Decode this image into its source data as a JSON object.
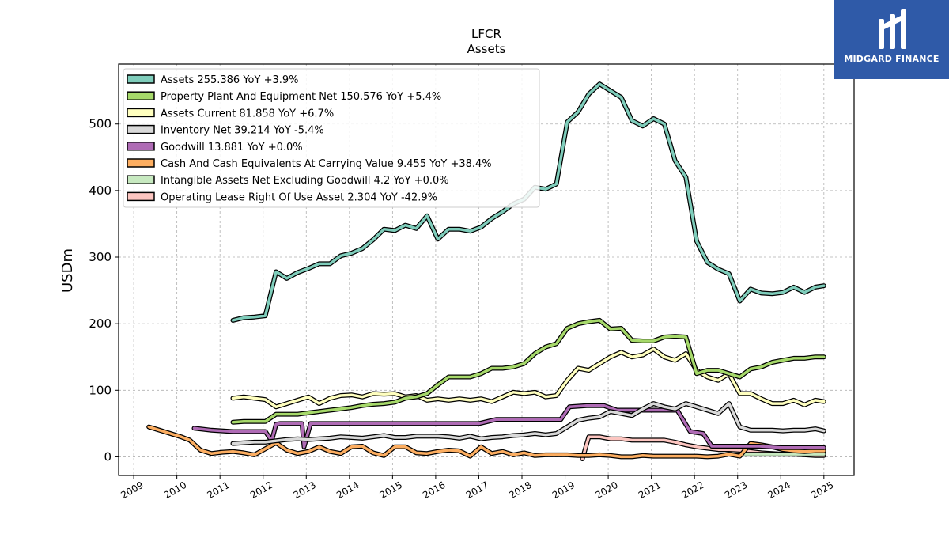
{
  "chart_data": {
    "type": "line",
    "title": "LFCR",
    "subtitle": "Assets",
    "ylabel": "USDm",
    "xlabel": "",
    "xlim": [
      2008.65,
      2025.7
    ],
    "ylim": [
      -28,
      590
    ],
    "x_ticks": [
      "2009",
      "2010",
      "2011",
      "2012",
      "2013",
      "2014",
      "2015",
      "2016",
      "2017",
      "2018",
      "2019",
      "2020",
      "2021",
      "2022",
      "2023",
      "2024",
      "2025"
    ],
    "y_ticks": [
      "0",
      "100",
      "200",
      "300",
      "400",
      "500"
    ],
    "grid": true,
    "legend_position": "top-left",
    "series": [
      {
        "name": "Assets",
        "legend": "Assets  255.386 YoY +3.9%",
        "color": "#7fcdbb",
        "x": [
          2011.3,
          2011.55,
          2011.8,
          2012.05,
          2012.3,
          2012.55,
          2012.8,
          2013.05,
          2013.3,
          2013.55,
          2013.8,
          2014.05,
          2014.3,
          2014.55,
          2014.8,
          2015.05,
          2015.3,
          2015.55,
          2015.8,
          2016.05,
          2016.3,
          2016.55,
          2016.8,
          2017.05,
          2017.3,
          2017.55,
          2017.8,
          2018.05,
          2018.3,
          2018.55,
          2018.8,
          2019.05,
          2019.3,
          2019.55,
          2019.8,
          2020.05,
          2020.3,
          2020.55,
          2020.8,
          2021.05,
          2021.3,
          2021.55,
          2021.8,
          2022.05,
          2022.3,
          2022.55,
          2022.8,
          2023.05,
          2023.3,
          2023.55,
          2023.8,
          2024.05,
          2024.3,
          2024.55,
          2024.8,
          2025.0
        ],
        "y": [
          205,
          209,
          210,
          212,
          278,
          268,
          277,
          283,
          290,
          290,
          302,
          306,
          313,
          326,
          342,
          340,
          348,
          343,
          362,
          327,
          342,
          342,
          339,
          345,
          358,
          368,
          380,
          387,
          405,
          402,
          410,
          503,
          518,
          545,
          560,
          550,
          540,
          505,
          497,
          508,
          500,
          445,
          420,
          324,
          292,
          282,
          275,
          234,
          252,
          246,
          245,
          247,
          255,
          247,
          255,
          257
        ]
      },
      {
        "name": "Property Plant And Equipment Net",
        "legend": "Property Plant And Equipment Net  150.576 YoY +5.4%",
        "color": "#a6d96a",
        "x": [
          2011.3,
          2011.55,
          2011.8,
          2012.05,
          2012.3,
          2012.55,
          2012.8,
          2013.05,
          2013.3,
          2013.55,
          2013.8,
          2014.05,
          2014.3,
          2014.55,
          2014.8,
          2015.05,
          2015.3,
          2015.55,
          2015.8,
          2016.05,
          2016.3,
          2016.55,
          2016.8,
          2017.05,
          2017.3,
          2017.55,
          2017.8,
          2018.05,
          2018.3,
          2018.55,
          2018.8,
          2019.05,
          2019.3,
          2019.55,
          2019.8,
          2020.05,
          2020.3,
          2020.55,
          2020.8,
          2021.05,
          2021.3,
          2021.55,
          2021.8,
          2022.05,
          2022.3,
          2022.55,
          2022.8,
          2023.05,
          2023.3,
          2023.55,
          2023.8,
          2024.05,
          2024.3,
          2024.55,
          2024.8,
          2025.0
        ],
        "y": [
          52,
          53,
          53,
          53,
          64,
          64,
          64,
          66,
          68,
          70,
          72,
          74,
          77,
          79,
          80,
          82,
          88,
          90,
          95,
          108,
          120,
          120,
          120,
          125,
          133,
          133,
          135,
          140,
          155,
          165,
          170,
          193,
          200,
          203,
          205,
          192,
          193,
          175,
          174,
          174,
          180,
          181,
          180,
          125,
          130,
          130,
          125,
          120,
          132,
          135,
          142,
          145,
          148,
          148,
          150,
          150
        ]
      },
      {
        "name": "Assets Current",
        "legend": "Assets Current  81.858 YoY +6.7%",
        "color": "#ffffbf",
        "x": [
          2011.3,
          2011.55,
          2011.8,
          2012.05,
          2012.3,
          2012.55,
          2012.8,
          2013.05,
          2013.3,
          2013.55,
          2013.8,
          2014.05,
          2014.3,
          2014.55,
          2014.8,
          2015.05,
          2015.3,
          2015.55,
          2015.8,
          2016.05,
          2016.3,
          2016.55,
          2016.8,
          2017.05,
          2017.3,
          2017.55,
          2017.8,
          2018.05,
          2018.3,
          2018.55,
          2018.8,
          2019.05,
          2019.3,
          2019.55,
          2019.8,
          2020.05,
          2020.3,
          2020.55,
          2020.8,
          2021.05,
          2021.3,
          2021.55,
          2021.8,
          2022.05,
          2022.3,
          2022.55,
          2022.8,
          2023.05,
          2023.3,
          2023.55,
          2023.8,
          2024.05,
          2024.3,
          2024.55,
          2024.8,
          2025.0
        ],
        "y": [
          88,
          90,
          88,
          86,
          75,
          80,
          85,
          90,
          80,
          88,
          92,
          93,
          90,
          95,
          94,
          95,
          90,
          92,
          85,
          87,
          85,
          87,
          85,
          87,
          83,
          90,
          97,
          95,
          97,
          90,
          92,
          115,
          133,
          130,
          140,
          150,
          157,
          150,
          153,
          162,
          150,
          145,
          155,
          130,
          120,
          115,
          125,
          95,
          95,
          87,
          80,
          80,
          85,
          78,
          85,
          83
        ]
      },
      {
        "name": "Inventory Net",
        "legend": "Inventory Net  39.214 YoY -5.4%",
        "color": "#d9d9d9",
        "x": [
          2011.3,
          2011.55,
          2011.8,
          2012.05,
          2012.3,
          2012.55,
          2012.8,
          2013.05,
          2013.3,
          2013.55,
          2013.8,
          2014.05,
          2014.3,
          2014.55,
          2014.8,
          2015.05,
          2015.3,
          2015.55,
          2015.8,
          2016.05,
          2016.3,
          2016.55,
          2016.8,
          2017.05,
          2017.3,
          2017.55,
          2017.8,
          2018.05,
          2018.3,
          2018.55,
          2018.8,
          2019.05,
          2019.3,
          2019.55,
          2019.8,
          2020.05,
          2020.3,
          2020.55,
          2020.8,
          2021.05,
          2021.3,
          2021.55,
          2021.8,
          2022.05,
          2022.3,
          2022.55,
          2022.8,
          2023.05,
          2023.3,
          2023.55,
          2023.8,
          2024.05,
          2024.3,
          2024.55,
          2024.8,
          2025.0
        ],
        "y": [
          20,
          21,
          22,
          22,
          24,
          26,
          27,
          26,
          27,
          28,
          30,
          29,
          28,
          30,
          32,
          29,
          29,
          31,
          31,
          31,
          30,
          28,
          31,
          27,
          29,
          30,
          32,
          33,
          35,
          33,
          35,
          45,
          55,
          58,
          60,
          68,
          65,
          62,
          72,
          80,
          75,
          72,
          80,
          75,
          70,
          65,
          80,
          45,
          40,
          40,
          40,
          39,
          40,
          40,
          42,
          39
        ]
      },
      {
        "name": "Goodwill",
        "legend": "Goodwill  13.881 YoY +0.0%",
        "color": "#af6bb5",
        "x": [
          2010.4,
          2010.8,
          2011.3,
          2012.05,
          2012.2,
          2012.3,
          2012.4,
          2012.9,
          2012.95,
          2013.1,
          2013.5,
          2014.0,
          2015.0,
          2016.0,
          2017.0,
          2017.4,
          2018.0,
          2018.9,
          2019.1,
          2019.5,
          2019.9,
          2020.2,
          2020.6,
          2021.0,
          2021.6,
          2021.9,
          2022.2,
          2022.4,
          2022.6,
          2023.0,
          2023.5,
          2024.0,
          2024.5,
          2025.0
        ],
        "y": [
          43,
          40,
          38,
          38,
          24,
          49,
          50,
          50,
          15,
          50,
          50,
          50,
          50,
          50,
          50,
          56,
          56,
          56,
          75,
          77,
          77,
          70,
          70,
          70,
          70,
          38,
          35,
          16,
          16,
          16,
          16,
          14,
          14,
          14
        ]
      },
      {
        "name": "Cash And Cash Equivalents At Carrying Value",
        "legend": "Cash And Cash Equivalents At Carrying Value  9.455 YoY +38.4%",
        "color": "#fdae61",
        "x": [
          2009.35,
          2009.6,
          2009.85,
          2010.1,
          2010.3,
          2010.55,
          2010.8,
          2011.05,
          2011.3,
          2011.55,
          2011.8,
          2012.05,
          2012.3,
          2012.55,
          2012.8,
          2013.05,
          2013.3,
          2013.55,
          2013.8,
          2014.05,
          2014.3,
          2014.55,
          2014.8,
          2015.05,
          2015.3,
          2015.55,
          2015.8,
          2016.05,
          2016.3,
          2016.55,
          2016.8,
          2017.05,
          2017.3,
          2017.55,
          2017.8,
          2018.05,
          2018.3,
          2018.55,
          2018.8,
          2019.05,
          2019.3,
          2019.55,
          2019.8,
          2020.05,
          2020.3,
          2020.55,
          2020.8,
          2021.05,
          2021.3,
          2021.55,
          2021.8,
          2022.05,
          2022.3,
          2022.55,
          2022.8,
          2023.05,
          2023.3,
          2023.55,
          2023.8,
          2024.05,
          2024.3,
          2024.55,
          2024.8,
          2025.0
        ],
        "y": [
          45,
          40,
          35,
          30,
          25,
          10,
          5,
          7,
          8,
          6,
          3,
          12,
          21,
          10,
          5,
          8,
          15,
          8,
          5,
          15,
          16,
          6,
          2,
          15,
          15,
          6,
          5,
          8,
          10,
          9,
          1,
          15,
          5,
          8,
          3,
          6,
          2,
          3,
          3,
          3,
          2,
          2,
          3,
          2,
          0,
          0,
          2,
          1,
          1,
          1,
          1,
          1,
          0,
          1,
          4,
          1,
          20,
          18,
          15,
          11,
          9,
          8,
          9,
          9
        ]
      },
      {
        "name": "Intangible Assets Net Excluding Goodwill",
        "legend": "Intangible Assets Net Excluding Goodwill  4.2 YoY +0.0%",
        "color": "#c7e9c0",
        "x": [
          2023.05,
          2023.3,
          2023.55,
          2023.8,
          2024.05,
          2024.3,
          2024.55,
          2024.8,
          2025.0
        ],
        "y": [
          4,
          4,
          4,
          4,
          4,
          4,
          4,
          4,
          4
        ]
      },
      {
        "name": "Operating Lease Right Of Use Asset",
        "legend": "Operating Lease Right Of Use Asset  2.304 YoY -42.9%",
        "color": "#fcc5c0",
        "x": [
          2019.4,
          2019.55,
          2019.8,
          2020.05,
          2020.3,
          2020.55,
          2020.8,
          2021.05,
          2021.3,
          2021.55,
          2021.8,
          2022.05,
          2022.3,
          2022.55,
          2022.8,
          2023.05,
          2023.3,
          2023.55,
          2023.8,
          2024.05,
          2024.3,
          2024.55,
          2024.8,
          2025.0
        ],
        "y": [
          -3,
          30,
          30,
          27,
          27,
          25,
          25,
          25,
          25,
          22,
          18,
          15,
          13,
          11,
          11,
          10,
          8,
          6,
          5,
          4,
          4,
          3,
          2,
          2
        ]
      }
    ]
  },
  "logo": {
    "text": "MIDGARD FINANCE",
    "color": "#2f5aa8"
  }
}
